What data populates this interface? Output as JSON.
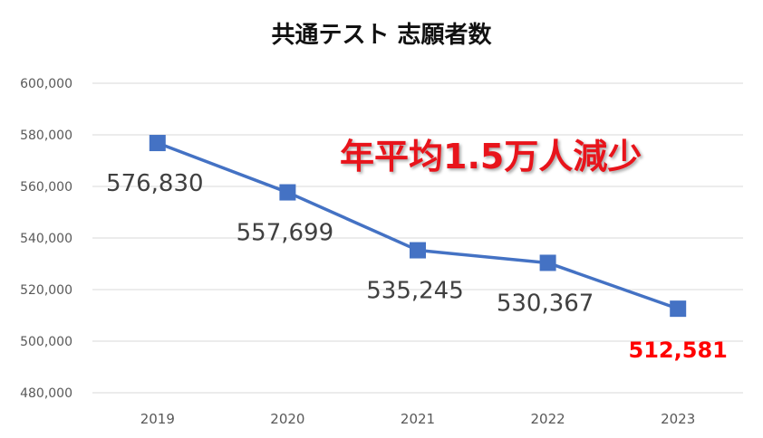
{
  "chart_data": {
    "type": "line",
    "title": "共通テスト 志願者数",
    "annotation": "年平均1.5万人減少",
    "categories": [
      "2019",
      "2020",
      "2021",
      "2022",
      "2023"
    ],
    "series": [
      {
        "values": [
          576830,
          557699,
          535245,
          530367,
          512581
        ],
        "color": "#4472c4"
      }
    ],
    "data_labels": [
      "576,830",
      "557,699",
      "535,245",
      "530,367",
      "512,581"
    ],
    "highlight_label_color": "#ff0000",
    "annotation_color": "#e8141b",
    "ylim": [
      480000,
      600000
    ],
    "yticks": [
      "480,000",
      "500,000",
      "520,000",
      "540,000",
      "560,000",
      "580,000",
      "600,000"
    ],
    "ytick_values": [
      480000,
      500000,
      520000,
      540000,
      560000,
      580000,
      600000
    ],
    "grid": true,
    "marker": "square"
  }
}
